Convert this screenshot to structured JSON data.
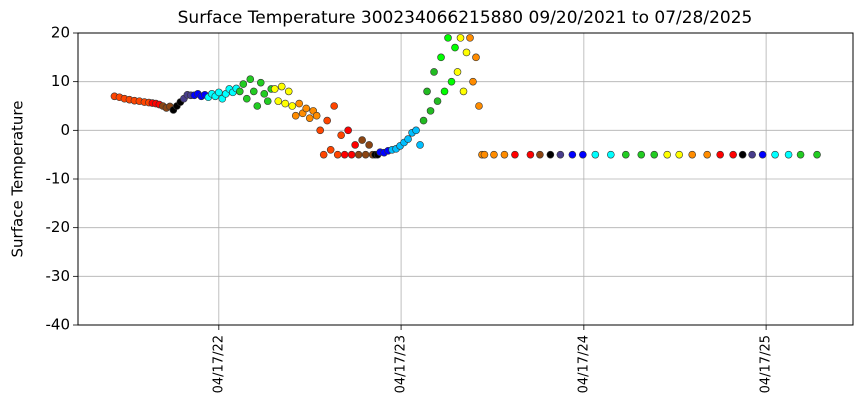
{
  "chart_data": {
    "type": "scatter",
    "title": "Surface Temperature 300234066215880  09/20/2021 to 07/28/2025",
    "ylabel": "Surface Temperature",
    "xlim": [
      "2021-07-09",
      "2025-10-08"
    ],
    "xticks": [
      {
        "value": "2022-04-17",
        "label": "04/17/22"
      },
      {
        "value": "2023-04-17",
        "label": "04/17/23"
      },
      {
        "value": "2024-04-17",
        "label": "04/17/24"
      },
      {
        "value": "2025-04-17",
        "label": "04/17/25"
      }
    ],
    "ylim": [
      -40,
      20
    ],
    "yticks": [
      -40,
      -30,
      -20,
      -10,
      0,
      10,
      20
    ],
    "grid": true,
    "series": [
      {
        "color": "#ff4500",
        "x": [
          "2021-09-20",
          "2021-09-30",
          "2021-10-10",
          "2021-10-20",
          "2021-10-30",
          "2021-11-09",
          "2021-11-19",
          "2021-11-28"
        ],
        "values": [
          7,
          6.8,
          6.5,
          6.3,
          6.1,
          6.0,
          5.8,
          5.7
        ]
      },
      {
        "color": "#ff0000",
        "x": [
          "2021-12-05",
          "2021-12-12",
          "2021-12-19"
        ],
        "values": [
          5.6,
          5.5,
          5.3
        ]
      },
      {
        "color": "#8b4513",
        "x": [
          "2021-12-26",
          "2022-01-02",
          "2022-01-09"
        ],
        "values": [
          5.0,
          4.6,
          4.9
        ]
      },
      {
        "color": "#000000",
        "x": [
          "2022-01-16",
          "2022-01-23",
          "2022-01-30"
        ],
        "values": [
          4.2,
          5.0,
          5.8
        ]
      },
      {
        "color": "#483d8b",
        "x": [
          "2022-02-06",
          "2022-02-13",
          "2022-02-20"
        ],
        "values": [
          6.5,
          7.3,
          7.2
        ]
      },
      {
        "color": "#0000ff",
        "x": [
          "2022-02-27",
          "2022-03-06",
          "2022-03-13",
          "2022-03-20"
        ],
        "values": [
          7.2,
          7.5,
          7.0,
          7.3
        ]
      },
      {
        "color": "#00ffff",
        "x": [
          "2022-03-27",
          "2022-04-03",
          "2022-04-10",
          "2022-04-17",
          "2022-04-24",
          "2022-05-01",
          "2022-05-08",
          "2022-05-15",
          "2022-05-22"
        ],
        "values": [
          6.8,
          7.5,
          7.0,
          7.8,
          6.5,
          7.5,
          8.5,
          7.8,
          8.6
        ]
      },
      {
        "color": "#22cc22",
        "x": [
          "2022-05-29",
          "2022-06-05",
          "2022-06-12",
          "2022-06-19",
          "2022-06-26",
          "2022-07-03",
          "2022-07-10",
          "2022-07-17",
          "2022-07-24",
          "2022-07-31"
        ],
        "values": [
          8.0,
          9.5,
          6.5,
          10.5,
          8.0,
          5.0,
          9.8,
          7.5,
          6.0,
          8.5
        ]
      },
      {
        "color": "#ffff00",
        "x": [
          "2022-08-07",
          "2022-08-14",
          "2022-08-21",
          "2022-08-28",
          "2022-09-04",
          "2022-09-11"
        ],
        "values": [
          8.5,
          6.0,
          9.0,
          5.5,
          8.0,
          5.0
        ]
      },
      {
        "color": "#ff8c00",
        "x": [
          "2022-09-18",
          "2022-09-25",
          "2022-10-02",
          "2022-10-09",
          "2022-10-16",
          "2022-10-23",
          "2022-10-30"
        ],
        "values": [
          3.0,
          5.5,
          3.5,
          4.5,
          2.5,
          4.0,
          3.0
        ]
      },
      {
        "color": "#ff4500",
        "x": [
          "2022-11-06",
          "2022-11-13",
          "2022-11-20",
          "2022-11-27",
          "2022-12-04",
          "2022-12-11",
          "2022-12-18"
        ],
        "values": [
          0,
          -5,
          2,
          -4,
          5,
          -5,
          -1
        ]
      },
      {
        "color": "#ff0000",
        "x": [
          "2022-12-25",
          "2023-01-01",
          "2023-01-08",
          "2023-01-15"
        ],
        "values": [
          -5,
          0,
          -5,
          -3
        ]
      },
      {
        "color": "#8b4513",
        "x": [
          "2023-01-22",
          "2023-01-29",
          "2023-02-05",
          "2023-02-12",
          "2023-02-19"
        ],
        "values": [
          -5,
          -2,
          -5,
          -3,
          -5
        ]
      },
      {
        "color": "#000000",
        "x": [
          "2023-02-24",
          "2023-03-01"
        ],
        "values": [
          -5,
          -5
        ]
      },
      {
        "color": "#0000ff",
        "x": [
          "2023-03-06",
          "2023-03-14",
          "2023-03-22"
        ],
        "values": [
          -4.5,
          -4.6,
          -4.2
        ]
      },
      {
        "color": "#00bfff",
        "x": [
          "2023-03-30",
          "2023-04-07",
          "2023-04-15",
          "2023-04-23",
          "2023-05-01",
          "2023-05-09",
          "2023-05-17",
          "2023-05-25"
        ],
        "values": [
          -4,
          -3.8,
          -3.2,
          -2.5,
          -1.8,
          -0.5,
          0,
          -3
        ]
      },
      {
        "color": "#22bb22",
        "x": [
          "2023-06-01",
          "2023-06-08",
          "2023-06-15",
          "2023-06-22",
          "2023-06-29"
        ],
        "values": [
          2,
          8,
          4,
          12,
          6
        ]
      },
      {
        "color": "#00ff00",
        "x": [
          "2023-07-06",
          "2023-07-13",
          "2023-07-20",
          "2023-07-27",
          "2023-08-03"
        ],
        "values": [
          15,
          8,
          19,
          10,
          17
        ]
      },
      {
        "color": "#ffff00",
        "x": [
          "2023-08-08",
          "2023-08-14",
          "2023-08-20",
          "2023-08-26"
        ],
        "values": [
          12,
          19,
          8,
          16
        ]
      },
      {
        "color": "#ff8c00",
        "x": [
          "2023-09-02",
          "2023-09-08",
          "2023-09-14",
          "2023-09-20",
          "2023-09-26"
        ],
        "values": [
          19,
          10,
          15,
          5,
          -5
        ]
      },
      {
        "color": "#ff8c00",
        "x": [
          "2023-10-01",
          "2023-10-20",
          "2023-11-10"
        ],
        "values": [
          -5,
          -5,
          -5
        ]
      },
      {
        "color": "#ff0000",
        "x": [
          "2023-12-01",
          "2024-01-01"
        ],
        "values": [
          -5,
          -5
        ]
      },
      {
        "color": "#8b4513",
        "x": [
          "2024-01-20"
        ],
        "values": [
          -5
        ]
      },
      {
        "color": "#000000",
        "x": [
          "2024-02-10"
        ],
        "values": [
          -5
        ]
      },
      {
        "color": "#483d8b",
        "x": [
          "2024-03-01"
        ],
        "values": [
          -5
        ]
      },
      {
        "color": "#0000ff",
        "x": [
          "2024-03-25",
          "2024-04-15"
        ],
        "values": [
          -5,
          -5
        ]
      },
      {
        "color": "#00ffff",
        "x": [
          "2024-05-10",
          "2024-06-10"
        ],
        "values": [
          -5,
          -5
        ]
      },
      {
        "color": "#22cc22",
        "x": [
          "2024-07-10",
          "2024-08-10",
          "2024-09-05"
        ],
        "values": [
          -5,
          -5,
          -5
        ]
      },
      {
        "color": "#ffff00",
        "x": [
          "2024-10-01",
          "2024-10-25"
        ],
        "values": [
          -5,
          -5
        ]
      },
      {
        "color": "#ff8c00",
        "x": [
          "2024-11-20",
          "2024-12-20"
        ],
        "values": [
          -5,
          -5
        ]
      },
      {
        "color": "#ff0000",
        "x": [
          "2025-01-15",
          "2025-02-10"
        ],
        "values": [
          -5,
          -5
        ]
      },
      {
        "color": "#000000",
        "x": [
          "2025-03-01"
        ],
        "values": [
          -5
        ]
      },
      {
        "color": "#483d8b",
        "x": [
          "2025-03-20"
        ],
        "values": [
          -5
        ]
      },
      {
        "color": "#0000ff",
        "x": [
          "2025-04-10"
        ],
        "values": [
          -5
        ]
      },
      {
        "color": "#00ffff",
        "x": [
          "2025-05-05",
          "2025-06-01"
        ],
        "values": [
          -5,
          -5
        ]
      },
      {
        "color": "#22cc22",
        "x": [
          "2025-06-25",
          "2025-07-28"
        ],
        "values": [
          -5,
          -5
        ]
      }
    ]
  }
}
